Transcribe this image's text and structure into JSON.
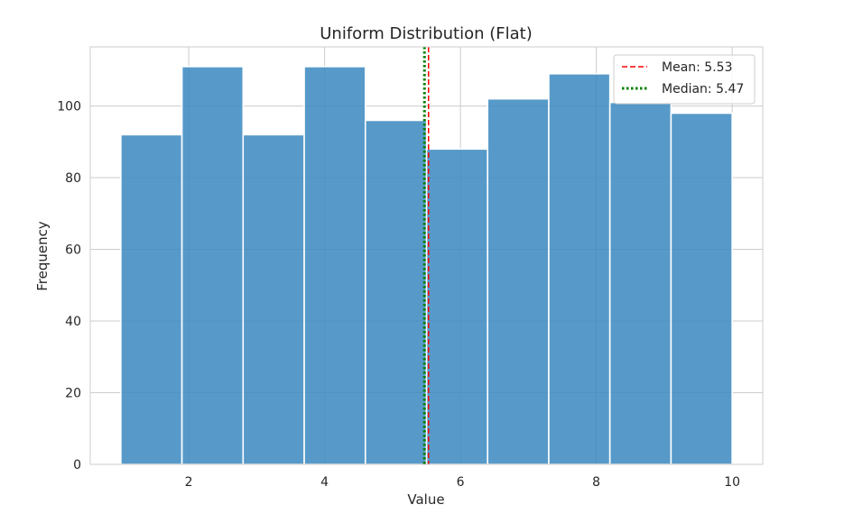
{
  "chart_data": {
    "type": "bar",
    "title": "Uniform Distribution (Flat)",
    "xlabel": "Value",
    "ylabel": "Frequency",
    "xlim": [
      0.55,
      10.45
    ],
    "ylim": [
      0,
      116.5
    ],
    "x_ticks": [
      2,
      4,
      6,
      8,
      10
    ],
    "x_tick_labels": [
      "2",
      "4",
      "6",
      "8",
      "10"
    ],
    "y_ticks": [
      0,
      20,
      40,
      60,
      80,
      100
    ],
    "y_tick_labels": [
      "0",
      "20",
      "40",
      "60",
      "80",
      "100"
    ],
    "grid": true,
    "bin_edges": [
      1.0,
      1.9,
      2.8,
      3.7,
      4.6,
      5.5,
      6.4,
      7.3,
      8.2,
      9.1,
      10.0
    ],
    "values": [
      92,
      111,
      92,
      111,
      96,
      88,
      102,
      109,
      101,
      98
    ],
    "bar_color": "#3a88c0",
    "vlines": [
      {
        "name": "Mean: 5.53",
        "x": 5.53,
        "color": "#ff0000",
        "style": "dashed"
      },
      {
        "name": "Median: 5.47",
        "x": 5.47,
        "color": "#008000",
        "style": "dotted"
      }
    ],
    "legend_position": "top-right"
  }
}
